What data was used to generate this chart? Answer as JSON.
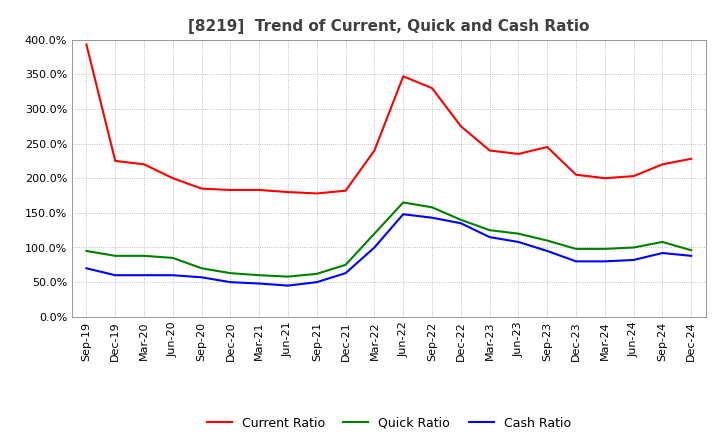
{
  "title": "[8219]  Trend of Current, Quick and Cash Ratio",
  "ylim": [
    0,
    400
  ],
  "yticks": [
    0,
    50,
    100,
    150,
    200,
    250,
    300,
    350,
    400
  ],
  "background_color": "#ffffff",
  "plot_bg_color": "#ffffff",
  "grid_color": "#aaaaaa",
  "title_fontsize": 11,
  "tick_fontsize": 8,
  "x_labels": [
    "Sep-19",
    "Dec-19",
    "Mar-20",
    "Jun-20",
    "Sep-20",
    "Dec-20",
    "Mar-21",
    "Jun-21",
    "Sep-21",
    "Dec-21",
    "Mar-22",
    "Jun-22",
    "Sep-22",
    "Dec-22",
    "Mar-23",
    "Jun-23",
    "Sep-23",
    "Dec-23",
    "Mar-24",
    "Jun-24",
    "Sep-24",
    "Dec-24"
  ],
  "current_ratio": [
    393,
    225,
    220,
    200,
    185,
    183,
    183,
    180,
    178,
    182,
    240,
    347,
    330,
    275,
    240,
    235,
    245,
    205,
    200,
    203,
    220,
    228
  ],
  "quick_ratio": [
    95,
    88,
    88,
    85,
    70,
    63,
    60,
    58,
    62,
    75,
    120,
    165,
    158,
    140,
    125,
    120,
    110,
    98,
    98,
    100,
    108,
    96
  ],
  "cash_ratio": [
    70,
    60,
    60,
    60,
    57,
    50,
    48,
    45,
    50,
    63,
    100,
    148,
    143,
    135,
    115,
    108,
    95,
    80,
    80,
    82,
    92,
    88
  ],
  "line_colors": [
    "#ff0000",
    "#008000",
    "#0000ff"
  ],
  "line_labels": [
    "Current Ratio",
    "Quick Ratio",
    "Cash Ratio"
  ],
  "line_width": 1.5,
  "legend_fontsize": 9
}
